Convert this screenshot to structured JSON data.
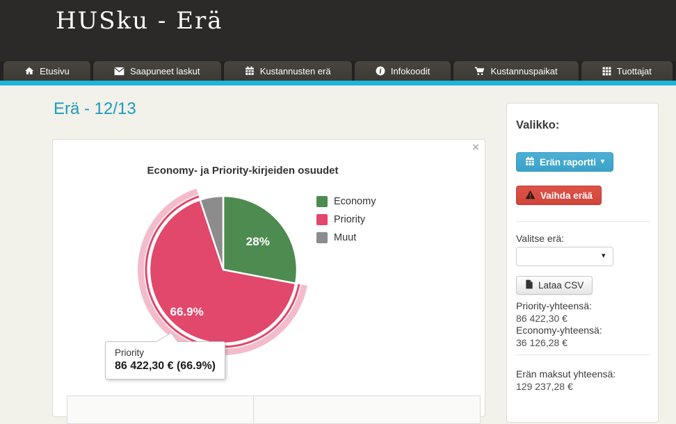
{
  "header": {
    "title": "HUSku - Erä"
  },
  "nav": {
    "tabs": [
      {
        "label": "Etusivu"
      },
      {
        "label": "Saapuneet laskut"
      },
      {
        "label": "Kustannusten erä"
      },
      {
        "label": "Infokoodit"
      },
      {
        "label": "Kustannuspaikat"
      },
      {
        "label": "Tuottajat"
      }
    ]
  },
  "page": {
    "heading": "Erä - 12/13"
  },
  "chart_panel": {
    "close_label": "×"
  },
  "chart_data": {
    "type": "pie",
    "title": "Economy- ja Priority-kirjeiden osuudet",
    "categories": [
      "Economy",
      "Priority",
      "Muut"
    ],
    "values": [
      28,
      66.9,
      5.1
    ],
    "slice_labels": [
      "28%",
      "66.9%",
      ""
    ],
    "colors": [
      "#4d8b51",
      "#e2476c",
      "#8c8c8c"
    ],
    "legend_position": "right",
    "hovered_slice_index": 1,
    "hover_halo_color": "#f4bccb"
  },
  "tooltip": {
    "series": "Priority",
    "value_line": "86 422,30 € (66.9%)"
  },
  "sidebar": {
    "heading": "Valikko:",
    "report_button": "Erän raportti",
    "report_caret": "▾",
    "change_button": "Vaihda erää",
    "select_label": "Valitse erä:",
    "select_caret": "▾",
    "csv_button": "Lataa CSV",
    "priority_total_label": "Priority-yhteensä:",
    "priority_total_value": "86 422,30 €",
    "economy_total_label": "Economy-yhteensä:",
    "economy_total_value": "36 126,28 €",
    "batch_total_label": "Erän maksut yhteensä:",
    "batch_total_value": "129 237,28 €"
  },
  "colors": {
    "accent_cyan": "#1db6d8",
    "heading_teal": "#1b9cba",
    "report_button_blue": "#44abd1",
    "change_button_red": "#d94c41",
    "economy_green": "#4d8b51",
    "priority_pink": "#e2476c",
    "muut_gray": "#8c8c8c"
  }
}
